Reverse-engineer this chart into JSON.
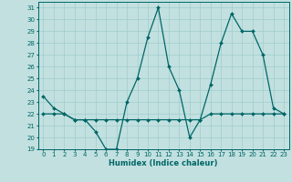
{
  "title": "",
  "xlabel": "Humidex (Indice chaleur)",
  "background_color": "#c2e0e0",
  "line_color": "#006666",
  "grid_color": "#a0cccc",
  "ylim": [
    19,
    31.5
  ],
  "xlim": [
    -0.5,
    23.5
  ],
  "yticks": [
    19,
    20,
    21,
    22,
    23,
    24,
    25,
    26,
    27,
    28,
    29,
    30,
    31
  ],
  "xticks": [
    0,
    1,
    2,
    3,
    4,
    5,
    6,
    7,
    8,
    9,
    10,
    11,
    12,
    13,
    14,
    15,
    16,
    17,
    18,
    19,
    20,
    21,
    22,
    23
  ],
  "line1_x": [
    0,
    1,
    2,
    3,
    4,
    5,
    6,
    7,
    8,
    9,
    10,
    11,
    12,
    13,
    14,
    15,
    16,
    17,
    18,
    19,
    20,
    21,
    22,
    23
  ],
  "line1_y": [
    23.5,
    22.5,
    22.0,
    21.5,
    21.5,
    20.5,
    19.0,
    19.0,
    23.0,
    25.0,
    28.5,
    31.0,
    26.0,
    24.0,
    20.0,
    21.5,
    24.5,
    28.0,
    30.5,
    29.0,
    29.0,
    27.0,
    22.5,
    22.0
  ],
  "line2_x": [
    0,
    1,
    2,
    3,
    4,
    5,
    6,
    7,
    8,
    9,
    10,
    11,
    12,
    13,
    14,
    15,
    16,
    17,
    18,
    19,
    20,
    21,
    22,
    23
  ],
  "line2_y": [
    22.0,
    22.0,
    22.0,
    21.5,
    21.5,
    21.5,
    21.5,
    21.5,
    21.5,
    21.5,
    21.5,
    21.5,
    21.5,
    21.5,
    21.5,
    21.5,
    22.0,
    22.0,
    22.0,
    22.0,
    22.0,
    22.0,
    22.0,
    22.0
  ],
  "xlabel_fontsize": 6.0,
  "tick_fontsize": 5.0,
  "linewidth": 0.9,
  "markersize": 2.0
}
